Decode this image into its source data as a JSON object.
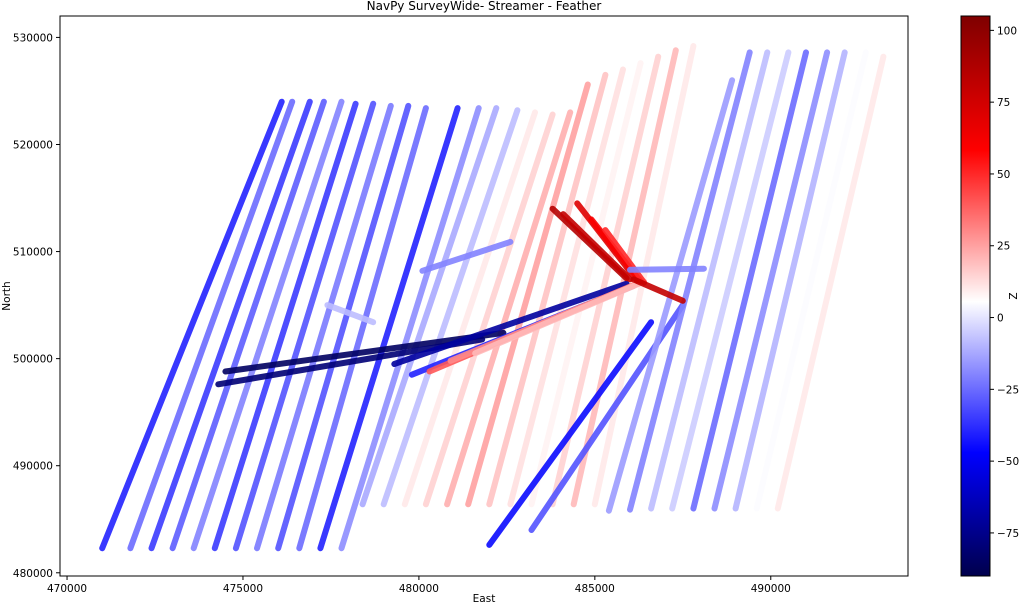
{
  "chart_data": {
    "type": "scatter",
    "title": "NavPy SurveyWide- Streamer - Feather",
    "xlabel": "East",
    "ylabel": "North",
    "xlim": [
      469800,
      493900
    ],
    "ylim": [
      479700,
      532000
    ],
    "xticks": [
      470000,
      475000,
      480000,
      485000,
      490000
    ],
    "xtick_labels": [
      "470000",
      "475000",
      "480000",
      "485000",
      "490000"
    ],
    "yticks": [
      480000,
      490000,
      500000,
      510000,
      520000,
      530000
    ],
    "ytick_labels": [
      "480000",
      "490000",
      "500000",
      "510000",
      "520000",
      "530000"
    ],
    "grid": false,
    "colorbar": {
      "label": "Z",
      "min": -90,
      "max": 105,
      "ticks": [
        -75,
        -50,
        -25,
        0,
        25,
        50,
        75,
        100
      ],
      "tick_labels": [
        "−75",
        "−50",
        "−25",
        "0",
        "25",
        "50",
        "75",
        "100"
      ],
      "colormap": "seismic",
      "colors": [
        "#00004c",
        "#0000ff",
        "#ffffff",
        "#ff0000",
        "#7f0000"
      ]
    },
    "series": [
      {
        "x": [
          471000,
          476100
        ],
        "y": [
          482300,
          524000
        ],
        "z": -40
      },
      {
        "x": [
          471800,
          476400
        ],
        "y": [
          482300,
          524000
        ],
        "z": -25
      },
      {
        "x": [
          472400,
          476900
        ],
        "y": [
          482300,
          524000
        ],
        "z": -35
      },
      {
        "x": [
          473000,
          477300
        ],
        "y": [
          482300,
          524000
        ],
        "z": -28
      },
      {
        "x": [
          473600,
          477800
        ],
        "y": [
          482300,
          524000
        ],
        "z": -20
      },
      {
        "x": [
          474200,
          478200
        ],
        "y": [
          482300,
          523800
        ],
        "z": -35
      },
      {
        "x": [
          474800,
          478700
        ],
        "y": [
          482300,
          523800
        ],
        "z": -30
      },
      {
        "x": [
          475400,
          479200
        ],
        "y": [
          482300,
          523600
        ],
        "z": -22
      },
      {
        "x": [
          476000,
          479700
        ],
        "y": [
          482300,
          523600
        ],
        "z": -30
      },
      {
        "x": [
          476600,
          480200
        ],
        "y": [
          482300,
          523400
        ],
        "z": -25
      },
      {
        "x": [
          477200,
          481100
        ],
        "y": [
          482300,
          523400
        ],
        "z": -40
      },
      {
        "x": [
          477800,
          481700
        ],
        "y": [
          482300,
          523400
        ],
        "z": -18
      },
      {
        "x": [
          478400,
          482200
        ],
        "y": [
          486400,
          523400
        ],
        "z": -12
      },
      {
        "x": [
          479000,
          482800
        ],
        "y": [
          486400,
          523200
        ],
        "z": -8
      },
      {
        "x": [
          479600,
          483300
        ],
        "y": [
          486400,
          523000
        ],
        "z": 10
      },
      {
        "x": [
          480200,
          483800
        ],
        "y": [
          486400,
          522800
        ],
        "z": 15
      },
      {
        "x": [
          480800,
          484300
        ],
        "y": [
          486400,
          523000
        ],
        "z": 22
      },
      {
        "x": [
          481400,
          484800
        ],
        "y": [
          486400,
          525600
        ],
        "z": 25
      },
      {
        "x": [
          482000,
          485300
        ],
        "y": [
          486400,
          526500
        ],
        "z": 18
      },
      {
        "x": [
          482600,
          485800
        ],
        "y": [
          486400,
          527000
        ],
        "z": 12
      },
      {
        "x": [
          483200,
          486300
        ],
        "y": [
          486400,
          527600
        ],
        "z": 8
      },
      {
        "x": [
          483800,
          486800
        ],
        "y": [
          486400,
          528200
        ],
        "z": 15
      },
      {
        "x": [
          484400,
          487300
        ],
        "y": [
          486400,
          528800
        ],
        "z": 20
      },
      {
        "x": [
          485000,
          487800
        ],
        "y": [
          486400,
          529200
        ],
        "z": 10
      },
      {
        "x": [
          482000,
          486600
        ],
        "y": [
          482600,
          503400
        ],
        "z": -45
      },
      {
        "x": [
          483200,
          487500
        ],
        "y": [
          484000,
          505000
        ],
        "z": -30
      },
      {
        "x": [
          485400,
          488900
        ],
        "y": [
          485800,
          526000
        ],
        "z": -15
      },
      {
        "x": [
          486000,
          489400
        ],
        "y": [
          485900,
          528600
        ],
        "z": -20
      },
      {
        "x": [
          486600,
          489900
        ],
        "y": [
          486000,
          528600
        ],
        "z": -8
      },
      {
        "x": [
          487200,
          490500
        ],
        "y": [
          486000,
          528600
        ],
        "z": -5
      },
      {
        "x": [
          487800,
          491000
        ],
        "y": [
          486000,
          528600
        ],
        "z": -25
      },
      {
        "x": [
          488400,
          491600
        ],
        "y": [
          486000,
          528600
        ],
        "z": -18
      },
      {
        "x": [
          489000,
          492100
        ],
        "y": [
          486000,
          528600
        ],
        "z": -10
      },
      {
        "x": [
          489600,
          492700
        ],
        "y": [
          486000,
          528600
        ],
        "z": 5
      },
      {
        "x": [
          490200,
          493200
        ],
        "y": [
          486000,
          528200
        ],
        "z": 10
      },
      {
        "x": [
          474500,
          482400
        ],
        "y": [
          498800,
          502400
        ],
        "z": -85
      },
      {
        "x": [
          474300,
          481800
        ],
        "y": [
          497600,
          501800
        ],
        "z": -80
      },
      {
        "x": [
          479300,
          485900
        ],
        "y": [
          499500,
          507000
        ],
        "z": -70
      },
      {
        "x": [
          479800,
          486100
        ],
        "y": [
          498500,
          506800
        ],
        "z": -40
      },
      {
        "x": [
          480300,
          486200
        ],
        "y": [
          498800,
          507000
        ],
        "z": 40
      },
      {
        "x": [
          480900,
          486300
        ],
        "y": [
          499800,
          507100
        ],
        "z": 30
      },
      {
        "x": [
          481600,
          486400
        ],
        "y": [
          500500,
          507200
        ],
        "z": 20
      },
      {
        "x": [
          483800,
          485900
        ],
        "y": [
          514000,
          507500
        ],
        "z": 85
      },
      {
        "x": [
          484100,
          486000
        ],
        "y": [
          513500,
          507400
        ],
        "z": 80
      },
      {
        "x": [
          484500,
          486200
        ],
        "y": [
          514500,
          507300
        ],
        "z": 70
      },
      {
        "x": [
          484900,
          486300
        ],
        "y": [
          513000,
          507200
        ],
        "z": 60
      },
      {
        "x": [
          485300,
          486400
        ],
        "y": [
          512000,
          507100
        ],
        "z": 50
      },
      {
        "x": [
          486100,
          487500
        ],
        "y": [
          507400,
          505400
        ],
        "z": 80
      },
      {
        "x": [
          486000,
          488100
        ],
        "y": [
          508300,
          508400
        ],
        "z": -20
      },
      {
        "x": [
          480100,
          482600
        ],
        "y": [
          508200,
          510900
        ],
        "z": -20
      },
      {
        "x": [
          477400,
          478700
        ],
        "y": [
          505000,
          503400
        ],
        "z": -8
      }
    ]
  }
}
